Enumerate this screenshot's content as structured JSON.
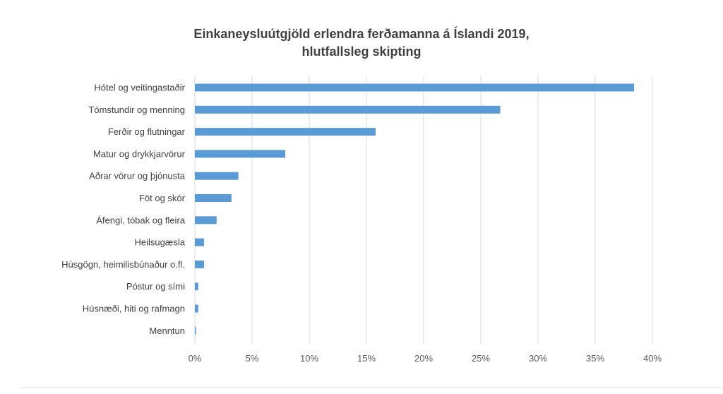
{
  "chart_data": {
    "type": "bar",
    "orientation": "horizontal",
    "title": "Einkaneysluútgjöld erlendra ferðamanna á Íslandi 2019,",
    "subtitle": "hlutfallsleg skipting",
    "categories": [
      "Hótel og veitingastaðir",
      "Tómstundir og menning",
      "Ferðir og flutningar",
      "Matur og  drykkjarvörur",
      "Aðrar vörur og þjónusta",
      "Föt og skór",
      "Áfengi, tóbak og fleira",
      "Heilsugæsla",
      "Húsgögn, heimilisbúnaður o.fl.",
      "Póstur og sími",
      "Húsnæði, hiti og rafmagn",
      "Menntun"
    ],
    "values": [
      38.4,
      26.7,
      15.8,
      7.9,
      3.8,
      3.2,
      1.9,
      0.8,
      0.8,
      0.3,
      0.3,
      0.1
    ],
    "xlim": [
      0,
      40
    ],
    "xticks": [
      "0%",
      "5%",
      "10%",
      "15%",
      "20%",
      "25%",
      "30%",
      "35%",
      "40%"
    ],
    "grid": true,
    "bar_color": "#5b9bd5",
    "grid_color": "#d9d9d9"
  }
}
